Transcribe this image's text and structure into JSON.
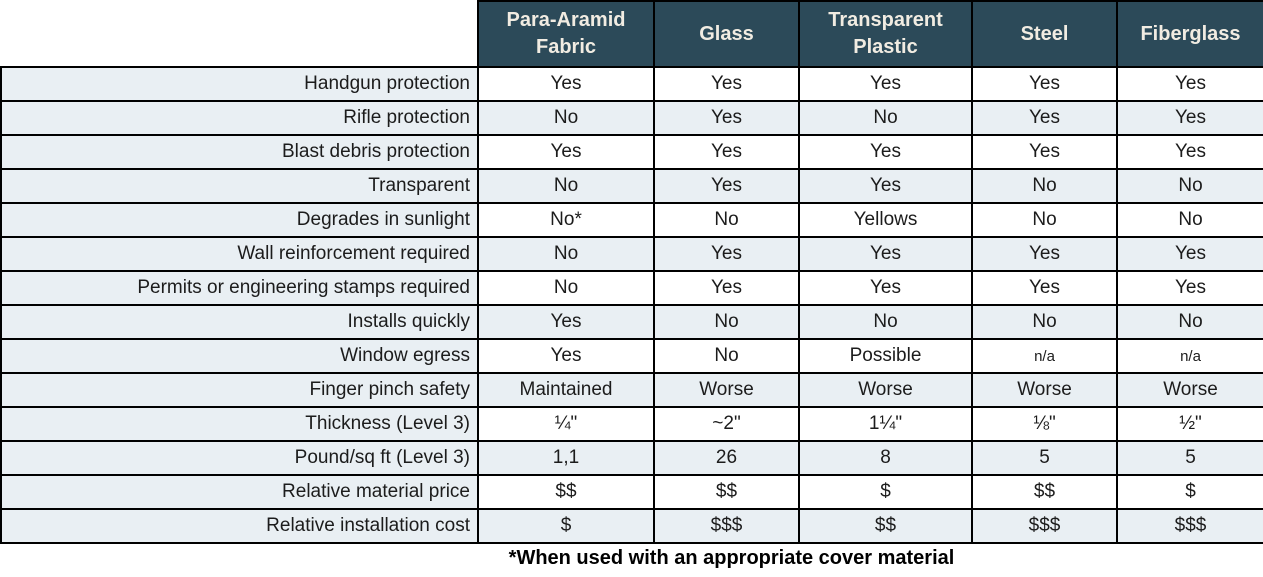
{
  "chart_data": {
    "type": "table",
    "corner_label": "",
    "columns": [
      "Para-Aramid Fabric",
      "Glass",
      "Transparent Plastic",
      "Steel",
      "Fiberglass"
    ],
    "rows": [
      {
        "label": "Handgun protection",
        "values": [
          "Yes",
          "Yes",
          "Yes",
          "Yes",
          "Yes"
        ]
      },
      {
        "label": "Rifle protection",
        "values": [
          "No",
          "Yes",
          "No",
          "Yes",
          "Yes"
        ]
      },
      {
        "label": "Blast debris protection",
        "values": [
          "Yes",
          "Yes",
          "Yes",
          "Yes",
          "Yes"
        ]
      },
      {
        "label": "Transparent",
        "values": [
          "No",
          "Yes",
          "Yes",
          "No",
          "No"
        ]
      },
      {
        "label": "Degrades in sunlight",
        "values": [
          "No*",
          "No",
          "Yellows",
          "No",
          "No"
        ]
      },
      {
        "label": "Wall reinforcement required",
        "values": [
          "No",
          "Yes",
          "Yes",
          "Yes",
          "Yes"
        ]
      },
      {
        "label": "Permits or engineering stamps required",
        "values": [
          "No",
          "Yes",
          "Yes",
          "Yes",
          "Yes"
        ]
      },
      {
        "label": "Installs quickly",
        "values": [
          "Yes",
          "No",
          "No",
          "No",
          "No"
        ]
      },
      {
        "label": "Window egress",
        "values": [
          "Yes",
          "No",
          "Possible",
          "n/a",
          "n/a"
        ]
      },
      {
        "label": "Finger pinch safety",
        "values": [
          "Maintained",
          "Worse",
          "Worse",
          "Worse",
          "Worse"
        ]
      },
      {
        "label": "Thickness (Level 3)",
        "values": [
          "¼\"",
          "~2\"",
          "1¼\"",
          "⅛\"",
          "½\""
        ]
      },
      {
        "label": "Pound/sq ft (Level 3)",
        "values": [
          "1,1",
          "26",
          "8",
          "5",
          "5"
        ]
      },
      {
        "label": "Relative material price",
        "values": [
          "$$",
          "$$",
          "$",
          "$$",
          "$"
        ]
      },
      {
        "label": "Relative installation cost",
        "values": [
          "$",
          "$$$",
          "$$",
          "$$$",
          "$$$"
        ]
      }
    ],
    "footnote": "*When used with an appropriate cover material",
    "layout": {
      "stripe_pattern": "even-data-rows-and-label-column",
      "grid": true
    },
    "colors": {
      "header_bg": "#2c4a59",
      "header_text": "#f1ece2",
      "stripe": "#e9eff3",
      "border": "#000000",
      "text": "#1c1c1c"
    }
  }
}
